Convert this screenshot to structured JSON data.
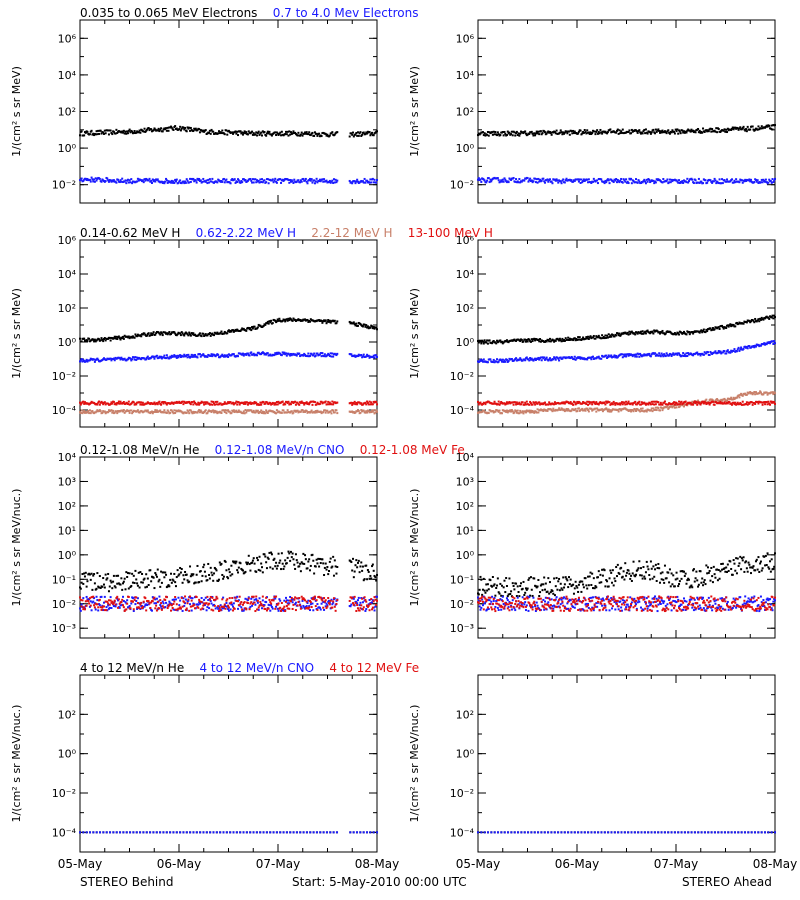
{
  "colors": {
    "black": "#000000",
    "blue": "#1a1aff",
    "tan": "#c8806a",
    "red": "#e01010",
    "axis": "#000000"
  },
  "rows": [
    {
      "ylabel": "1/(cm² s sr MeV)",
      "ticks": [
        {
          "v": -2,
          "label": "10⁻²"
        },
        {
          "v": 0,
          "label": "10⁰"
        },
        {
          "v": 2,
          "label": "10²"
        },
        {
          "v": 4,
          "label": "10⁴"
        },
        {
          "v": 6,
          "label": "10⁶"
        }
      ],
      "ymin": -3,
      "ymax": 7,
      "legend": [
        {
          "text": "0.035 to 0.065 MeV Electrons",
          "color": "#000000"
        },
        {
          "text": "0.7 to 4.0 Mev Electrons",
          "color": "#1a1aff"
        }
      ]
    },
    {
      "ylabel": "1/(cm² s sr MeV)",
      "ticks": [
        {
          "v": -4,
          "label": "10⁻⁴"
        },
        {
          "v": -2,
          "label": "10⁻²"
        },
        {
          "v": 0,
          "label": "10⁰"
        },
        {
          "v": 2,
          "label": "10²"
        },
        {
          "v": 4,
          "label": "10⁴"
        },
        {
          "v": 6,
          "label": "10⁶"
        }
      ],
      "ymin": -5,
      "ymax": 6,
      "legend": [
        {
          "text": "0.14-0.62 MeV H",
          "color": "#000000"
        },
        {
          "text": "0.62-2.22 MeV H",
          "color": "#1a1aff"
        },
        {
          "text": "2.2-12 MeV H",
          "color": "#c8806a"
        },
        {
          "text": "13-100 MeV H",
          "color": "#e01010"
        }
      ]
    },
    {
      "ylabel": "1/(cm² s sr MeV/nuc.)",
      "ticks": [
        {
          "v": -3,
          "label": "10⁻³"
        },
        {
          "v": -2,
          "label": "10⁻²"
        },
        {
          "v": -1,
          "label": "10⁻¹"
        },
        {
          "v": 0,
          "label": "10⁰"
        },
        {
          "v": 1,
          "label": "10¹"
        },
        {
          "v": 2,
          "label": "10²"
        },
        {
          "v": 3,
          "label": "10³"
        },
        {
          "v": 4,
          "label": "10⁴"
        }
      ],
      "ymin": -3.4,
      "ymax": 4,
      "legend": [
        {
          "text": "0.12-1.08 MeV/n He",
          "color": "#000000"
        },
        {
          "text": "0.12-1.08 MeV/n CNO",
          "color": "#1a1aff"
        },
        {
          "text": "0.12-1.08 MeV Fe",
          "color": "#e01010"
        }
      ]
    },
    {
      "ylabel": "1/(cm² s sr MeV/nuc.)",
      "ticks": [
        {
          "v": -4,
          "label": "10⁻⁴"
        },
        {
          "v": -2,
          "label": "10⁻²"
        },
        {
          "v": 0,
          "label": "10⁰"
        },
        {
          "v": 2,
          "label": "10²"
        }
      ],
      "ymin": -5,
      "ymax": 4,
      "legend": [
        {
          "text": "4 to 12 MeV/n He",
          "color": "#000000"
        },
        {
          "text": "4 to 12 MeV/n CNO",
          "color": "#1a1aff"
        },
        {
          "text": "4 to 12 MeV Fe",
          "color": "#e01010"
        }
      ]
    }
  ],
  "xticks": [
    "05-May",
    "06-May",
    "07-May",
    "08-May"
  ],
  "footer": {
    "left": "STEREO Behind",
    "center": "Start:  5-May-2010 00:00 UTC",
    "right": "STEREO Ahead"
  },
  "chart_data": [
    {
      "type": "scatter",
      "panel": "Behind electrons",
      "x_days": [
        0,
        3
      ],
      "yscale": "log",
      "gap_days": [
        2.6,
        2.72
      ],
      "series": [
        {
          "name": "0.035 to 0.065 MeV Electrons",
          "color": "#000000",
          "levels_log": [
            0.8,
            0.85,
            0.9,
            1.0,
            1.1,
            0.9,
            0.85,
            0.8,
            0.8,
            0.8,
            0.75,
            0.75,
            0.8
          ]
        },
        {
          "name": "0.7 to 4.0 Mev Electrons",
          "color": "#1a1aff",
          "levels_log": [
            -1.7,
            -1.75,
            -1.8,
            -1.8,
            -1.8,
            -1.8,
            -1.8,
            -1.8,
            -1.8,
            -1.8,
            -1.8,
            -1.8,
            -1.8
          ]
        }
      ]
    },
    {
      "type": "scatter",
      "panel": "Ahead electrons",
      "x_days": [
        0,
        3
      ],
      "yscale": "log",
      "gap_days": [],
      "series": [
        {
          "name": "0.035 to 0.065 MeV Electrons",
          "color": "#000000",
          "levels_log": [
            0.8,
            0.8,
            0.8,
            0.85,
            0.85,
            0.9,
            0.9,
            0.9,
            0.9,
            0.95,
            1.0,
            1.05,
            1.15
          ]
        },
        {
          "name": "0.7 to 4.0 Mev Electrons",
          "color": "#1a1aff",
          "levels_log": [
            -1.75,
            -1.75,
            -1.75,
            -1.8,
            -1.8,
            -1.8,
            -1.8,
            -1.8,
            -1.8,
            -1.8,
            -1.8,
            -1.8,
            -1.8
          ]
        }
      ]
    },
    {
      "type": "scatter",
      "panel": "Behind protons",
      "x_days": [
        0,
        3
      ],
      "yscale": "log",
      "gap_days": [
        2.6,
        2.72
      ],
      "series": [
        {
          "name": "0.14-0.62 MeV H",
          "color": "#000000",
          "levels_log": [
            0.1,
            0.15,
            0.3,
            0.5,
            0.5,
            0.4,
            0.6,
            0.8,
            1.3,
            1.3,
            1.2,
            1.1,
            0.8
          ]
        },
        {
          "name": "0.62-2.22 MeV H",
          "color": "#1a1aff",
          "levels_log": [
            -1.1,
            -1.05,
            -1.0,
            -0.9,
            -0.85,
            -0.8,
            -0.8,
            -0.7,
            -0.7,
            -0.75,
            -0.75,
            -0.8,
            -0.85
          ]
        },
        {
          "name": "2.2-12 MeV H",
          "color": "#c8806a",
          "levels_log": [
            -4.1,
            -4.1,
            -4.1,
            -4.1,
            -4.1,
            -4.1,
            -4.1,
            -4.1,
            -4.1,
            -4.1,
            -4.1,
            -4.1,
            -4.1
          ]
        },
        {
          "name": "13-100 MeV H",
          "color": "#e01010",
          "levels_log": [
            -3.6,
            -3.6,
            -3.6,
            -3.6,
            -3.6,
            -3.6,
            -3.6,
            -3.6,
            -3.6,
            -3.6,
            -3.6,
            -3.6,
            -3.6
          ]
        }
      ]
    },
    {
      "type": "scatter",
      "panel": "Ahead protons",
      "x_days": [
        0,
        3
      ],
      "yscale": "log",
      "gap_days": [],
      "series": [
        {
          "name": "0.14-0.62 MeV H",
          "color": "#000000",
          "levels_log": [
            0.0,
            0.0,
            0.1,
            0.1,
            0.2,
            0.3,
            0.5,
            0.6,
            0.5,
            0.6,
            0.9,
            1.2,
            1.5
          ]
        },
        {
          "name": "0.62-2.22 MeV H",
          "color": "#1a1aff",
          "levels_log": [
            -1.1,
            -1.1,
            -1.0,
            -1.0,
            -0.95,
            -0.9,
            -0.8,
            -0.75,
            -0.75,
            -0.7,
            -0.6,
            -0.3,
            0.0
          ]
        },
        {
          "name": "2.2-12 MeV H",
          "color": "#c8806a",
          "levels_log": [
            -4.1,
            -4.1,
            -4.1,
            -4.0,
            -4.0,
            -4.0,
            -4.0,
            -4.0,
            -3.8,
            -3.5,
            -3.4,
            -3.0,
            -3.0
          ]
        },
        {
          "name": "13-100 MeV H",
          "color": "#e01010",
          "levels_log": [
            -3.6,
            -3.6,
            -3.6,
            -3.6,
            -3.6,
            -3.6,
            -3.6,
            -3.6,
            -3.6,
            -3.6,
            -3.6,
            -3.6,
            -3.6
          ]
        }
      ]
    },
    {
      "type": "scatter",
      "panel": "Behind suprathermal ions",
      "x_days": [
        0,
        3
      ],
      "yscale": "log",
      "gap_days": [
        2.6,
        2.72
      ],
      "series": [
        {
          "name": "0.12-1.08 MeV/n He",
          "color": "#000000",
          "levels_log": [
            -1.1,
            -1.1,
            -1.05,
            -1.0,
            -0.9,
            -0.8,
            -0.6,
            -0.4,
            -0.2,
            -0.3,
            -0.45,
            -0.55,
            -0.8
          ]
        },
        {
          "name": "0.12-1.08 MeV/n CNO",
          "color": "#1a1aff",
          "levels_log": [
            -2.0,
            -2.0,
            -2.0,
            -2.0,
            -2.0,
            -2.0,
            -2.0,
            -2.0,
            -2.0,
            -2.0,
            -2.0,
            -2.0,
            -2.0
          ]
        },
        {
          "name": "0.12-1.08 MeV Fe",
          "color": "#e01010",
          "levels_log": [
            -2.0,
            -2.0,
            -2.0,
            -2.0,
            -2.0,
            -2.0,
            -2.0,
            -2.0,
            -2.0,
            -2.0,
            -2.0,
            -2.0,
            -2.0
          ]
        }
      ]
    },
    {
      "type": "scatter",
      "panel": "Ahead suprathermal ions",
      "x_days": [
        0,
        3
      ],
      "yscale": "log",
      "gap_days": [],
      "series": [
        {
          "name": "0.12-1.08 MeV/n He",
          "color": "#000000",
          "levels_log": [
            -1.3,
            -1.3,
            -1.3,
            -1.3,
            -1.2,
            -1.0,
            -0.7,
            -0.6,
            -1.0,
            -0.9,
            -0.6,
            -0.4,
            -0.3
          ]
        },
        {
          "name": "0.12-1.08 MeV/n CNO",
          "color": "#1a1aff",
          "levels_log": [
            -2.0,
            -2.0,
            -2.0,
            -2.0,
            -2.0,
            -2.0,
            -2.0,
            -2.0,
            -2.0,
            -2.0,
            -2.0,
            -2.0,
            -2.0
          ]
        },
        {
          "name": "0.12-1.08 MeV Fe",
          "color": "#e01010",
          "levels_log": [
            -2.0,
            -2.0,
            -2.0,
            -2.0,
            -2.0,
            -2.0,
            -2.0,
            -2.0,
            -2.0,
            -2.0,
            -2.0,
            -2.0,
            -2.0
          ]
        }
      ]
    },
    {
      "type": "scatter",
      "panel": "Behind energetic ions",
      "x_days": [
        0,
        3
      ],
      "yscale": "log",
      "gap_days": [
        2.6,
        2.72
      ],
      "series": [
        {
          "name": "4 to 12 MeV/n He",
          "color": "#000000",
          "levels_log": [
            -4.0
          ]
        },
        {
          "name": "4 to 12 MeV/n CNO",
          "color": "#1a1aff",
          "levels_log": [
            -4.0
          ]
        },
        {
          "name": "4 to 12 MeV Fe",
          "color": "#e01010",
          "levels_log": []
        }
      ]
    },
    {
      "type": "scatter",
      "panel": "Ahead energetic ions",
      "x_days": [
        0,
        3
      ],
      "yscale": "log",
      "gap_days": [],
      "series": [
        {
          "name": "4 to 12 MeV/n He",
          "color": "#000000",
          "levels_log": [
            -4.0
          ]
        },
        {
          "name": "4 to 12 MeV/n CNO",
          "color": "#1a1aff",
          "levels_log": [
            -4.0
          ]
        },
        {
          "name": "4 to 12 MeV Fe",
          "color": "#e01010",
          "levels_log": []
        }
      ]
    }
  ]
}
